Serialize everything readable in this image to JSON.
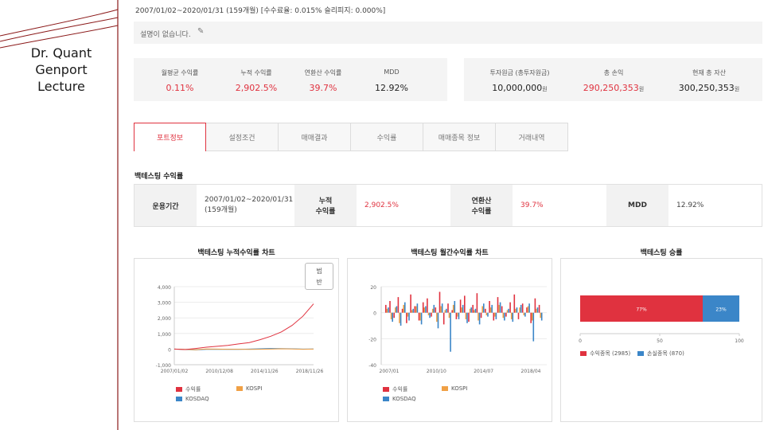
{
  "lecture": {
    "line1": "Dr. Quant",
    "line2": "Genport",
    "line3": "Lecture"
  },
  "period_line": "2007/01/02~2020/01/31 (159개월) [수수료율: 0.015% 슬리피지: 0.000%]",
  "description": "설명이 없습니다.",
  "stats": [
    {
      "label": "월평균 수익률",
      "value": "0.11%"
    },
    {
      "label": "누적 수익률",
      "value": "2,902.5%"
    },
    {
      "label": "연환산 수익률",
      "value": "39.7%"
    },
    {
      "label": "MDD",
      "value": "12.92%"
    }
  ],
  "money": [
    {
      "label": "투자원금 (총투자원금)",
      "value": "10,000,000",
      "unit": "원"
    },
    {
      "label": "총 손익",
      "value": "290,250,353",
      "unit": "원"
    },
    {
      "label": "현재 총 자산",
      "value": "300,250,353",
      "unit": "원"
    }
  ],
  "tabs": [
    "포트정보",
    "설정조건",
    "매매결과",
    "수익률",
    "매매종목 정보",
    "거래내역"
  ],
  "section_title": "백테스팅 수익률",
  "summary": {
    "period_label": "운용기간",
    "period_value_1": "2007/01/02~2020/01/31",
    "period_value_2": "(159개월)",
    "cum_label_1": "누적",
    "cum_label_2": "수익률",
    "cum_value": "2,902.5%",
    "ann_label_1": "연환산",
    "ann_label_2": "수익률",
    "ann_value": "39.7%",
    "mdd_label": "MDD",
    "mdd_value": "12.92%"
  },
  "zoom_button": {
    "line1": "범",
    "line2": "반"
  },
  "colors": {
    "red": "#e0323f",
    "orange": "#f0a045",
    "blue": "#3b86c8",
    "brand_red": "#c0392b"
  },
  "chart_data": [
    {
      "type": "line",
      "title": "백테스팅 누적수익률 차트",
      "y_ticks": [
        "4,000",
        "3,000",
        "2,000",
        "1,000",
        "0",
        "-1,000"
      ],
      "x_ticks": [
        "2007/01/02",
        "2010/12/08",
        "2014/11/26",
        "2018/11/26"
      ],
      "ylim": [
        -1000,
        4000
      ],
      "x": [
        2007,
        2008,
        2009,
        2010,
        2011,
        2012,
        2013,
        2014,
        2015,
        2016,
        2017,
        2018,
        2019,
        2020
      ],
      "series": [
        {
          "name": "수익률",
          "values": [
            0,
            -30,
            40,
            120,
            180,
            240,
            330,
            420,
            600,
            820,
            1100,
            1520,
            2100,
            2900
          ]
        },
        {
          "name": "KOSPI",
          "values": [
            0,
            -20,
            -40,
            10,
            0,
            -10,
            -10,
            -15,
            -10,
            0,
            20,
            10,
            -10,
            0
          ]
        },
        {
          "name": "KOSDAQ",
          "values": [
            0,
            -30,
            -50,
            -20,
            -20,
            -10,
            -15,
            0,
            20,
            40,
            30,
            20,
            0,
            10
          ]
        }
      ]
    },
    {
      "type": "bar",
      "title": "백테스팅 월간수익률 차트",
      "y_ticks": [
        "20",
        "0",
        "-20",
        "-40"
      ],
      "x_ticks": [
        "2007/01",
        "2010/10",
        "2014/07",
        "2018/04"
      ],
      "ylim": [
        -40,
        20
      ],
      "series": [
        {
          "name": "수익률",
          "values": [
            6,
            9,
            -4,
            12,
            3,
            -8,
            14,
            5,
            -6,
            8,
            11,
            -3,
            4,
            16,
            -9,
            7,
            2,
            -5,
            10,
            13,
            -7,
            6,
            15,
            -4,
            3,
            9,
            -6,
            12,
            5,
            -3,
            8,
            14,
            -5,
            7,
            4,
            -8,
            11,
            6
          ]
        },
        {
          "name": "KOSPI",
          "values": [
            3,
            -5,
            4,
            -8,
            6,
            -3,
            2,
            5,
            -6,
            4,
            -2,
            3,
            -7,
            5,
            2,
            -4,
            6,
            -3,
            4,
            -5,
            3,
            2,
            -6,
            5,
            -2,
            4,
            -3,
            6,
            -4,
            2,
            -5,
            3,
            4,
            -2,
            5,
            -6,
            3,
            -4
          ]
        },
        {
          "name": "KOSDAQ",
          "values": [
            4,
            -7,
            5,
            -10,
            8,
            -6,
            3,
            7,
            -9,
            5,
            -4,
            6,
            -12,
            7,
            3,
            -30,
            9,
            -5,
            6,
            -8,
            4,
            3,
            -9,
            7,
            -3,
            6,
            -5,
            8,
            -6,
            3,
            -7,
            4,
            6,
            -3,
            7,
            -22,
            4,
            -6
          ]
        }
      ]
    },
    {
      "type": "bar",
      "title": "백테스팅 승률",
      "x_ticks": [
        "0",
        "50",
        "100"
      ],
      "xlim": [
        0,
        100
      ],
      "series": [
        {
          "name": "수익종목 (2985)",
          "values": [
            77
          ]
        },
        {
          "name": "손실종목 (870)",
          "values": [
            23
          ]
        }
      ],
      "data_labels": [
        "77%",
        "23%"
      ]
    }
  ]
}
